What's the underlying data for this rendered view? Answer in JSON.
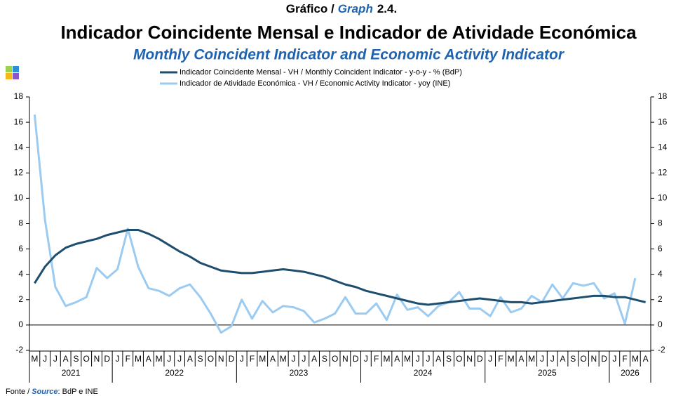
{
  "chart_data": {
    "type": "line",
    "graph_label": "Gráfico /",
    "graph_label_en": "Graph",
    "graph_number": "2.4.",
    "title": "Indicador Coincidente Mensal e Indicador de Atividade Económica",
    "subtitle": "Monthly Coincident Indicator and Economic Activity Indicator",
    "legend": "top",
    "grid": false,
    "categories": [
      "M",
      "J",
      "J",
      "A",
      "S",
      "O",
      "N",
      "D",
      "J",
      "F",
      "M",
      "A",
      "M",
      "J",
      "J",
      "A",
      "S",
      "O",
      "N",
      "D",
      "J",
      "F",
      "M",
      "A",
      "M",
      "J",
      "J",
      "A",
      "S",
      "O",
      "N",
      "D",
      "J",
      "F",
      "M",
      "A",
      "M",
      "J",
      "J",
      "A",
      "S",
      "O",
      "N",
      "D",
      "J",
      "F",
      "M",
      "A",
      "M",
      "J",
      "J",
      "A",
      "S",
      "O",
      "N",
      "D",
      "J",
      "F",
      "M",
      "A"
    ],
    "years": [
      "2021",
      "2022",
      "2023",
      "2024",
      "2025",
      "2026"
    ],
    "series": [
      {
        "name": "Indicador Coincidente Mensal - VH / Monthly Coincident Indicator - y-o-y - % (BdP)",
        "color": "#1d4e6d",
        "values": [
          3.3,
          4.6,
          5.5,
          6.1,
          6.4,
          6.6,
          6.8,
          7.1,
          7.3,
          7.5,
          7.5,
          7.2,
          6.8,
          6.3,
          5.8,
          5.4,
          4.9,
          4.6,
          4.3,
          4.2,
          4.1,
          4.1,
          4.2,
          4.3,
          4.4,
          4.3,
          4.2,
          4.0,
          3.8,
          3.5,
          3.2,
          3.0,
          2.7,
          2.5,
          2.3,
          2.1,
          1.9,
          1.7,
          1.6,
          1.7,
          1.8,
          1.9,
          2.0,
          2.1,
          2.0,
          1.9,
          1.8,
          1.8,
          1.7,
          1.8,
          1.9,
          2.0,
          2.1,
          2.2,
          2.3,
          2.3,
          2.2,
          2.2,
          2.0,
          1.8
        ]
      },
      {
        "name": "Indicador de Atividade Económica - VH / Economic Activity Indicator - yoy (INE)",
        "color": "#9ccbf2",
        "values": [
          16.6,
          8.3,
          3.0,
          1.5,
          1.8,
          2.2,
          4.5,
          3.7,
          4.4,
          7.6,
          4.6,
          2.9,
          2.7,
          2.3,
          2.9,
          3.2,
          2.2,
          0.9,
          -0.6,
          -0.1,
          2.0,
          0.5,
          1.9,
          1.0,
          1.5,
          1.4,
          1.1,
          0.2,
          0.5,
          0.9,
          2.2,
          0.9,
          0.9,
          1.7,
          0.4,
          2.4,
          1.2,
          1.4,
          0.7,
          1.5,
          1.8,
          2.6,
          1.3,
          1.3,
          0.7,
          2.2,
          1.0,
          1.3,
          2.3,
          1.8,
          3.2,
          2.1,
          3.3,
          3.1,
          3.3,
          2.1,
          2.5,
          0.1,
          3.7,
          null
        ]
      }
    ],
    "ylim": [
      -2,
      18
    ],
    "yticks": [
      -2,
      0,
      2,
      4,
      6,
      8,
      10,
      12,
      14,
      16,
      18
    ],
    "y2lim": [
      -2,
      18
    ],
    "y2ticks": [
      -2,
      0,
      2,
      4,
      6,
      8,
      10,
      12,
      14,
      16,
      18
    ],
    "source_label": "Fonte /",
    "source_label_en": "Source",
    "source": ": BdP e INE"
  }
}
